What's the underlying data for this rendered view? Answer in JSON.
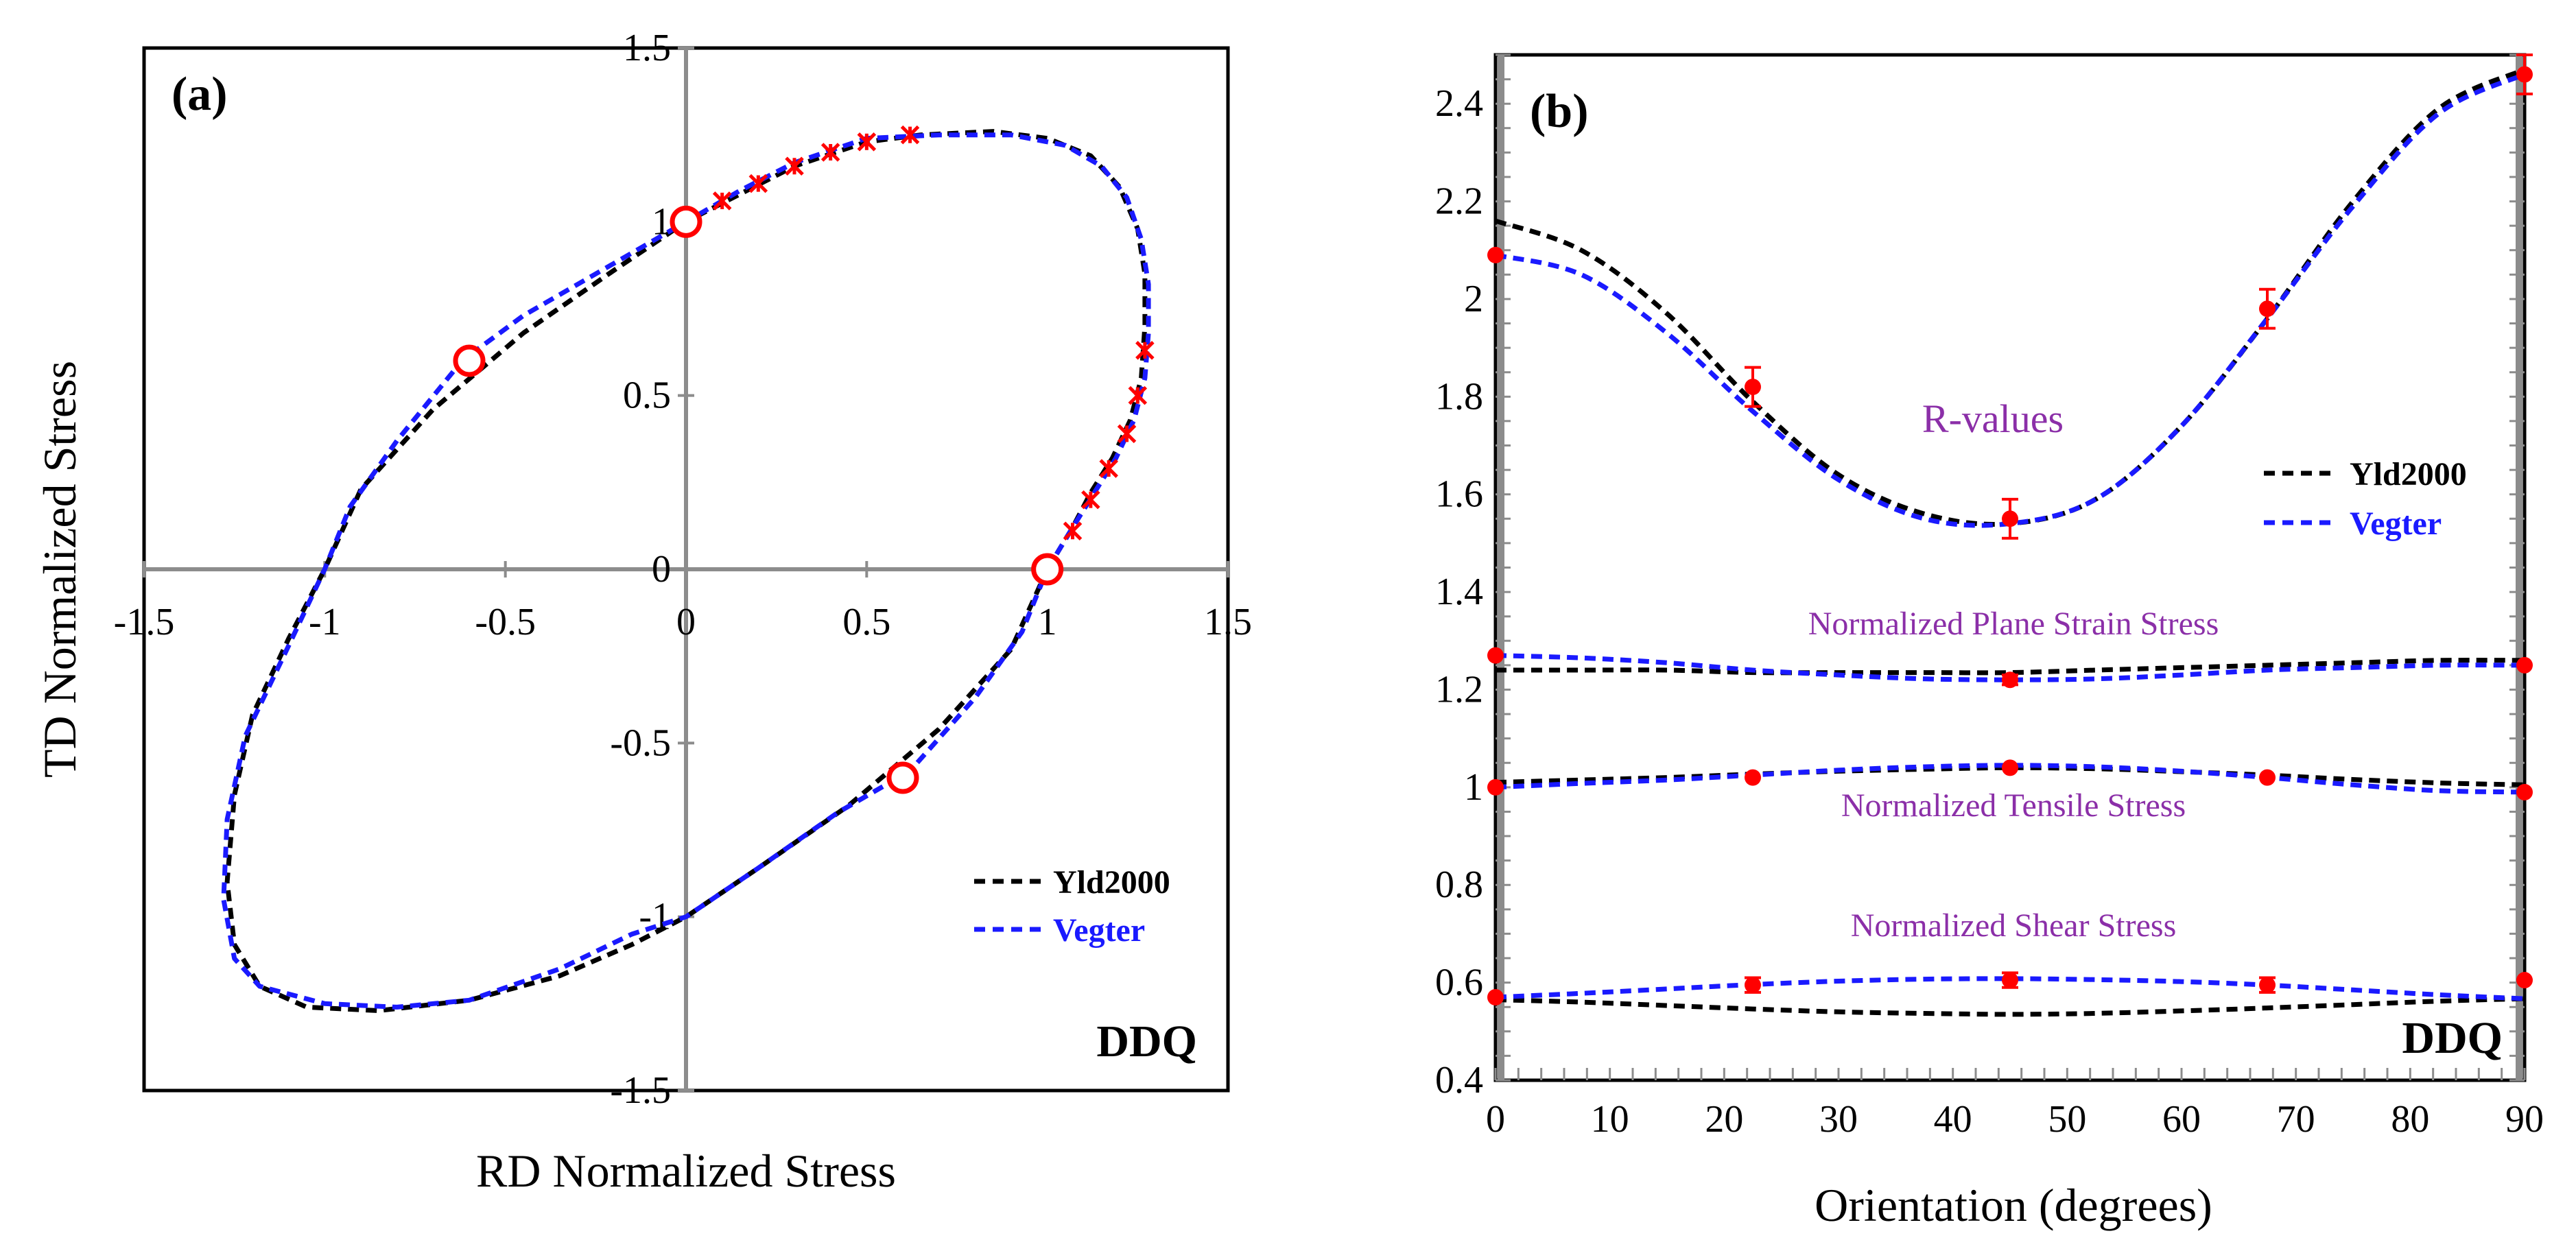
{
  "chart_data": [
    {
      "type": "line",
      "panel_label": "(a)",
      "xlabel": "RD Normalized Stress",
      "ylabel": "TD Normalized Stress",
      "xlim": [
        -1.5,
        1.5
      ],
      "ylim": [
        -1.5,
        1.5
      ],
      "x_ticks": [
        "-1.5",
        "-1",
        "-0.5",
        "0",
        "0.5",
        "1",
        "1.5"
      ],
      "y_ticks": [
        "-1.5",
        "-1",
        "-0.5",
        "0",
        "0.5",
        "1",
        "1.5"
      ],
      "tag": "DDQ",
      "legend": [
        "Yld2000",
        "Vegter"
      ],
      "series": [
        {
          "name": "Yld2000",
          "color": "#000000",
          "style": "dashed",
          "points": [
            [
              1.0,
              0.0
            ],
            [
              1.07,
              0.12
            ],
            [
              1.12,
              0.22
            ],
            [
              1.18,
              0.32
            ],
            [
              1.23,
              0.43
            ],
            [
              1.26,
              0.55
            ],
            [
              1.27,
              0.7
            ],
            [
              1.27,
              0.85
            ],
            [
              1.25,
              0.98
            ],
            [
              1.2,
              1.1
            ],
            [
              1.12,
              1.19
            ],
            [
              1.0,
              1.24
            ],
            [
              0.85,
              1.26
            ],
            [
              0.65,
              1.25
            ],
            [
              0.5,
              1.23
            ],
            [
              0.3,
              1.16
            ],
            [
              0.15,
              1.08
            ],
            [
              0.0,
              1.0
            ],
            [
              -0.2,
              0.86
            ],
            [
              -0.45,
              0.68
            ],
            [
              -0.7,
              0.46
            ],
            [
              -0.9,
              0.23
            ],
            [
              -1.0,
              0.0
            ],
            [
              -1.1,
              -0.2
            ],
            [
              -1.2,
              -0.42
            ],
            [
              -1.25,
              -0.65
            ],
            [
              -1.27,
              -0.9
            ],
            [
              -1.25,
              -1.08
            ],
            [
              -1.18,
              -1.2
            ],
            [
              -1.05,
              -1.26
            ],
            [
              -0.85,
              -1.27
            ],
            [
              -0.6,
              -1.24
            ],
            [
              -0.35,
              -1.17
            ],
            [
              -0.15,
              -1.08
            ],
            [
              0.0,
              -1.0
            ],
            [
              0.2,
              -0.86
            ],
            [
              0.45,
              -0.68
            ],
            [
              0.7,
              -0.46
            ],
            [
              0.9,
              -0.23
            ],
            [
              1.0,
              0.0
            ]
          ]
        },
        {
          "name": "Vegter",
          "color": "#1a1aff",
          "style": "dashed",
          "points": [
            [
              1.0,
              0.0
            ],
            [
              1.07,
              0.12
            ],
            [
              1.13,
              0.22
            ],
            [
              1.19,
              0.32
            ],
            [
              1.24,
              0.43
            ],
            [
              1.27,
              0.55
            ],
            [
              1.28,
              0.68
            ],
            [
              1.28,
              0.82
            ],
            [
              1.26,
              0.95
            ],
            [
              1.22,
              1.07
            ],
            [
              1.15,
              1.16
            ],
            [
              1.05,
              1.22
            ],
            [
              0.9,
              1.25
            ],
            [
              0.7,
              1.25
            ],
            [
              0.5,
              1.24
            ],
            [
              0.3,
              1.17
            ],
            [
              0.15,
              1.09
            ],
            [
              0.0,
              1.0
            ],
            [
              -0.2,
              0.88
            ],
            [
              -0.45,
              0.73
            ],
            [
              -0.62,
              0.6
            ],
            [
              -0.8,
              0.37
            ],
            [
              -0.93,
              0.18
            ],
            [
              -1.0,
              0.0
            ],
            [
              -1.1,
              -0.22
            ],
            [
              -1.22,
              -0.48
            ],
            [
              -1.27,
              -0.72
            ],
            [
              -1.28,
              -0.95
            ],
            [
              -1.25,
              -1.12
            ],
            [
              -1.18,
              -1.2
            ],
            [
              -1.0,
              -1.25
            ],
            [
              -0.8,
              -1.26
            ],
            [
              -0.6,
              -1.24
            ],
            [
              -0.35,
              -1.15
            ],
            [
              -0.15,
              -1.05
            ],
            [
              0.0,
              -1.0
            ],
            [
              0.2,
              -0.86
            ],
            [
              0.42,
              -0.7
            ],
            [
              0.62,
              -0.58
            ],
            [
              0.8,
              -0.37
            ],
            [
              0.93,
              -0.18
            ],
            [
              1.0,
              0.0
            ]
          ]
        }
      ],
      "experimental_circles": [
        [
          0.0,
          1.0
        ],
        [
          1.0,
          0.0
        ],
        [
          -0.6,
          0.6
        ],
        [
          0.6,
          -0.6
        ]
      ],
      "experimental_crosses": [
        [
          0.1,
          1.06
        ],
        [
          0.2,
          1.11
        ],
        [
          0.3,
          1.16
        ],
        [
          0.4,
          1.2
        ],
        [
          0.5,
          1.23
        ],
        [
          0.62,
          1.25
        ],
        [
          1.07,
          0.11
        ],
        [
          1.12,
          0.2
        ],
        [
          1.17,
          0.29
        ],
        [
          1.22,
          0.39
        ],
        [
          1.25,
          0.5
        ],
        [
          1.27,
          0.63
        ]
      ]
    },
    {
      "type": "line",
      "panel_label": "(b)",
      "xlabel": "Orientation (degrees)",
      "ylabel": "",
      "xlim": [
        0,
        90
      ],
      "ylim": [
        0.4,
        2.5
      ],
      "x_ticks": [
        "0",
        "10",
        "20",
        "30",
        "40",
        "50",
        "60",
        "70",
        "80",
        "90"
      ],
      "y_ticks": [
        "0.4",
        "0.6",
        "0.8",
        "1",
        "1.2",
        "1.4",
        "1.6",
        "1.8",
        "2",
        "2.2",
        "2.4"
      ],
      "tag": "DDQ",
      "legend": [
        "Yld2000",
        "Vegter"
      ],
      "annotations": {
        "r_values": "R-values",
        "plane_strain": "Normalized  Plane Strain  Stress",
        "tensile": "Normalized Tensile Stress",
        "shear": "Normalized Shear Stress"
      },
      "x": [
        0,
        7.5,
        15,
        22.5,
        30,
        37.5,
        45,
        52.5,
        60,
        67.5,
        75,
        82.5,
        90
      ],
      "series": [
        {
          "name": "Yld2000 R-values",
          "color": "#000000",
          "values": [
            2.16,
            2.1,
            1.97,
            1.79,
            1.64,
            1.56,
            1.54,
            1.59,
            1.74,
            1.96,
            2.2,
            2.39,
            2.47
          ]
        },
        {
          "name": "Vegter R-values",
          "color": "#1a1aff",
          "values": [
            2.09,
            2.05,
            1.93,
            1.77,
            1.63,
            1.55,
            1.54,
            1.59,
            1.74,
            1.96,
            2.19,
            2.38,
            2.46
          ]
        },
        {
          "name": "Yld2000 plane strain",
          "color": "#000000",
          "values": [
            1.24,
            1.24,
            1.24,
            1.235,
            1.235,
            1.235,
            1.235,
            1.24,
            1.245,
            1.25,
            1.255,
            1.26,
            1.26
          ]
        },
        {
          "name": "Vegter plane strain",
          "color": "#1a1aff",
          "values": [
            1.27,
            1.265,
            1.255,
            1.24,
            1.23,
            1.222,
            1.22,
            1.222,
            1.23,
            1.24,
            1.245,
            1.25,
            1.25
          ]
        },
        {
          "name": "Yld2000 tensile",
          "color": "#000000",
          "values": [
            1.01,
            1.015,
            1.02,
            1.027,
            1.033,
            1.037,
            1.04,
            1.038,
            1.032,
            1.025,
            1.016,
            1.009,
            1.005
          ]
        },
        {
          "name": "Vegter tensile",
          "color": "#1a1aff",
          "values": [
            1.0,
            1.008,
            1.015,
            1.025,
            1.035,
            1.042,
            1.045,
            1.042,
            1.033,
            1.02,
            1.005,
            0.993,
            0.99
          ]
        },
        {
          "name": "Yld2000 shear",
          "color": "#000000",
          "values": [
            0.565,
            0.56,
            0.553,
            0.546,
            0.54,
            0.537,
            0.535,
            0.537,
            0.542,
            0.548,
            0.555,
            0.562,
            0.567
          ]
        },
        {
          "name": "Vegter shear",
          "color": "#1a1aff",
          "values": [
            0.57,
            0.578,
            0.587,
            0.596,
            0.603,
            0.607,
            0.608,
            0.606,
            0.602,
            0.595,
            0.585,
            0.575,
            0.567
          ]
        }
      ],
      "experimental": [
        {
          "group": "R-values",
          "points": [
            [
              0,
              2.09,
              0
            ],
            [
              22.5,
              1.82,
              0.04
            ],
            [
              45,
              1.55,
              0.04
            ],
            [
              67.5,
              1.98,
              0.04
            ],
            [
              90,
              2.46,
              0.04
            ]
          ]
        },
        {
          "group": "plane strain",
          "points": [
            [
              0,
              1.27,
              0
            ],
            [
              45,
              1.22,
              0.01
            ],
            [
              90,
              1.25,
              0
            ]
          ]
        },
        {
          "group": "tensile",
          "points": [
            [
              0,
              1.0,
              0
            ],
            [
              22.5,
              1.02,
              0
            ],
            [
              45,
              1.04,
              0
            ],
            [
              67.5,
              1.02,
              0
            ],
            [
              90,
              0.99,
              0
            ]
          ]
        },
        {
          "group": "shear",
          "points": [
            [
              0,
              0.57,
              0
            ],
            [
              22.5,
              0.595,
              0.015
            ],
            [
              45,
              0.605,
              0.015
            ],
            [
              67.5,
              0.595,
              0.015
            ],
            [
              90,
              0.605,
              0
            ]
          ]
        }
      ]
    }
  ]
}
